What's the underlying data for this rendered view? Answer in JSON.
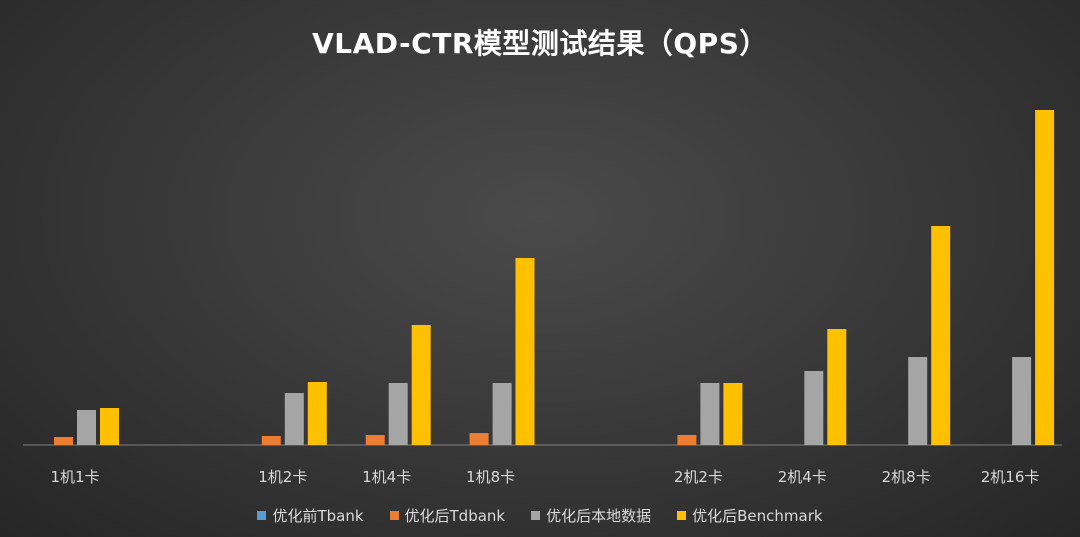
{
  "chart_data": {
    "type": "bar",
    "title": "VLAD-CTR模型测试结果（QPS）",
    "categories": [
      "1机1卡",
      "",
      "1机2卡",
      "1机4卡",
      "1机8卡",
      "",
      "2机2卡",
      "2机4卡",
      "2机8卡",
      "2机16卡"
    ],
    "series": [
      {
        "name": "优化前Tbank",
        "color": "#5b9bd5",
        "values": [
          0,
          0,
          0,
          0,
          0,
          0,
          0,
          0,
          0,
          0
        ]
      },
      {
        "name": "优化后Tdbank",
        "color": "#ed7d31",
        "values": [
          8,
          0,
          9,
          10,
          12,
          0,
          10,
          0,
          0,
          0
        ]
      },
      {
        "name": "优化后本地数据",
        "color": "#a5a5a5",
        "values": [
          35,
          0,
          52,
          62,
          62,
          0,
          62,
          74,
          88,
          88
        ]
      },
      {
        "name": "优化后Benchmark",
        "color": "#ffc000",
        "values": [
          37,
          0,
          63,
          120,
          187,
          0,
          62,
          116,
          219,
          335
        ]
      }
    ],
    "ylim": [
      0,
      350
    ],
    "grid": false,
    "legend_position": "bottom"
  }
}
